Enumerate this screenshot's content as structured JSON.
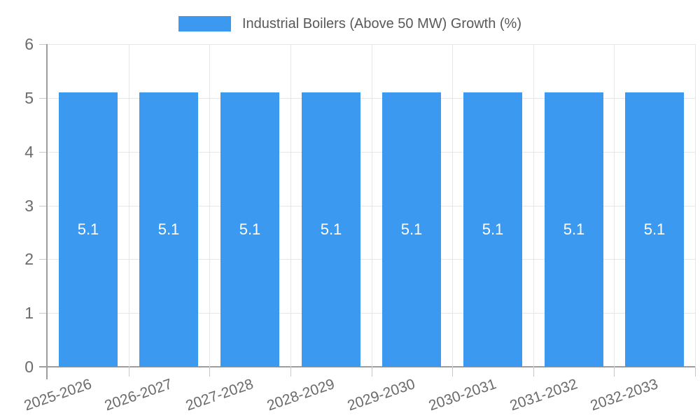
{
  "chart_data": {
    "type": "bar",
    "title": "",
    "legend": {
      "label": "Industrial Boilers (Above 50 MW) Growth (%)",
      "position": "top"
    },
    "categories": [
      "2025-2026",
      "2026-2027",
      "2027-2028",
      "2028-2029",
      "2029-2030",
      "2030-2031",
      "2031-2032",
      "2032-2033"
    ],
    "series": [
      {
        "name": "Industrial Boilers (Above 50 MW) Growth (%)",
        "values": [
          5.1,
          5.1,
          5.1,
          5.1,
          5.1,
          5.1,
          5.1,
          5.1
        ]
      }
    ],
    "value_labels": [
      "5.1",
      "5.1",
      "5.1",
      "5.1",
      "5.1",
      "5.1",
      "5.1",
      "5.1"
    ],
    "xlabel": "",
    "ylabel": "",
    "ylim": [
      0,
      6
    ],
    "yticks": [
      0,
      1,
      2,
      3,
      4,
      5,
      6
    ],
    "grid": true,
    "colors": {
      "bar": "#3b9af0",
      "grid": "#e6e6e6",
      "axis": "#9e9e9e",
      "tick": "#c9c9c9",
      "axis_text": "#6b6b6b",
      "legend_text": "#58595b",
      "value_label_text": "#ffffff",
      "background": "#ffffff"
    }
  }
}
